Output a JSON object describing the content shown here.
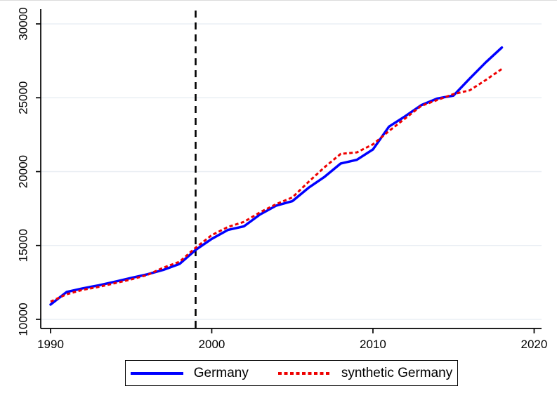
{
  "chart_data": {
    "type": "line",
    "title": "",
    "xlabel": "",
    "ylabel": "",
    "x": [
      1990,
      1991,
      1992,
      1993,
      1994,
      1995,
      1996,
      1997,
      1998,
      1999,
      2000,
      2001,
      2002,
      2003,
      2004,
      2005,
      2006,
      2007,
      2008,
      2009,
      2010,
      2011,
      2012,
      2013,
      2014,
      2015,
      2016,
      2017,
      2018
    ],
    "series": [
      {
        "name": "Germany",
        "color": "#0000ff",
        "style": "solid",
        "values": [
          11000,
          11850,
          12100,
          12300,
          12550,
          12800,
          13050,
          13350,
          13750,
          14700,
          15450,
          16050,
          16300,
          17100,
          17700,
          18000,
          18900,
          19650,
          20550,
          20800,
          21500,
          23050,
          23750,
          24500,
          24950,
          25150,
          26300,
          27400,
          28400
        ]
      },
      {
        "name": "synthetic Germany",
        "color": "#ee0000",
        "style": "dashed",
        "values": [
          11200,
          11700,
          12000,
          12200,
          12450,
          12700,
          13000,
          13500,
          13900,
          14850,
          15700,
          16250,
          16600,
          17250,
          17800,
          18250,
          19300,
          20300,
          21200,
          21300,
          21850,
          22750,
          23600,
          24450,
          24850,
          25250,
          25500,
          26200,
          26950
        ]
      }
    ],
    "x_ticks": [
      1990,
      2000,
      2010,
      2020
    ],
    "y_ticks": [
      10000,
      15000,
      20000,
      25000,
      30000
    ],
    "xlim": [
      1989.39,
      2020.46
    ],
    "ylim": [
      9380,
      31000
    ],
    "grid": "horizontal",
    "gridline_color": "#e8edf3",
    "axis_color": "#000000",
    "vline": {
      "x": 1999,
      "style": "dashed",
      "color": "#000000"
    },
    "legend_position": "bottom-center"
  }
}
